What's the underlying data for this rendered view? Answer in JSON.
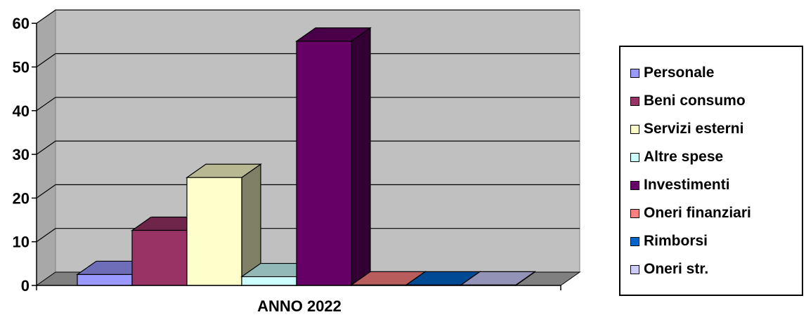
{
  "chart_data": {
    "type": "bar",
    "categories": [
      "ANNO 2022"
    ],
    "series": [
      {
        "name": "Personale",
        "values": [
          2.5
        ],
        "color": "#9999FF"
      },
      {
        "name": "Beni consumo",
        "values": [
          12.6
        ],
        "color": "#993366"
      },
      {
        "name": "Servizi esterni",
        "values": [
          24.7
        ],
        "color": "#FFFFCC"
      },
      {
        "name": "Altre spese",
        "values": [
          2.0
        ],
        "color": "#CCFFFF"
      },
      {
        "name": "Investimenti",
        "values": [
          55.9
        ],
        "color": "#660066"
      },
      {
        "name": "Oneri finanziari",
        "values": [
          0.1
        ],
        "color": "#FF8080"
      },
      {
        "name": "Rimborsi",
        "values": [
          0.1
        ],
        "color": "#0066CC"
      },
      {
        "name": "Oneri str.",
        "values": [
          0.1
        ],
        "color": "#CCCCFF"
      }
    ],
    "yticks": [
      "0",
      "10",
      "20",
      "30",
      "40",
      "50",
      "60"
    ],
    "ylim": [
      0,
      60
    ],
    "grid": true,
    "legend": "right",
    "wall_color": "#C0C0C0",
    "floor_color": "#808080",
    "three_d": true
  }
}
